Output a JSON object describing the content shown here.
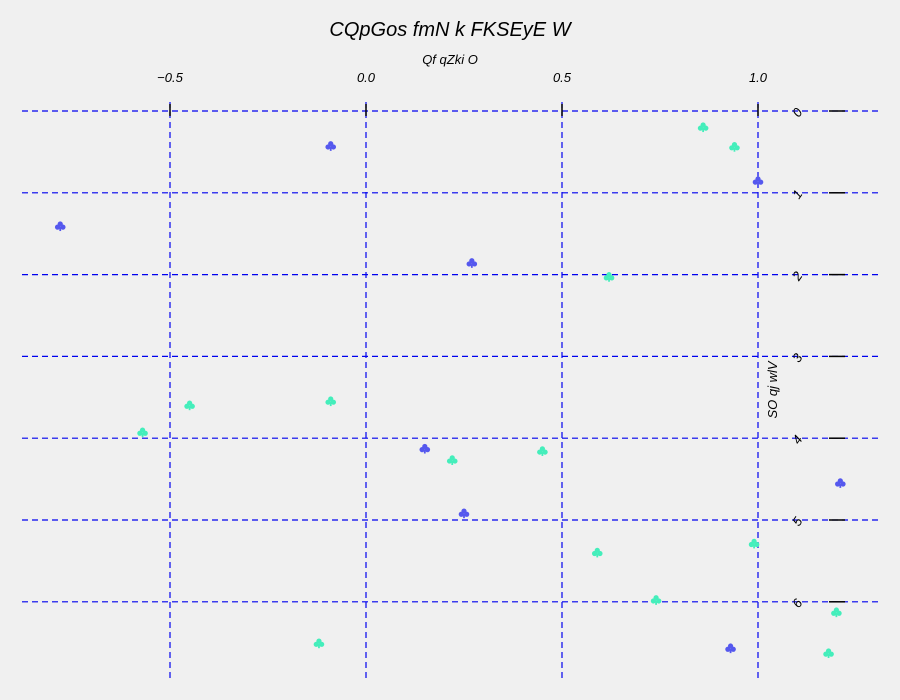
{
  "chart_data": {
    "type": "scatter",
    "title": "CQpGos fmN k FKSEyE   W",
    "xlabel": "Qf qZki O",
    "ylabel": "SO qj wlV",
    "xlim": [
      -0.88,
      1.3
    ],
    "ylim": [
      -0.2,
      6.95
    ],
    "x_ticks": [
      -0.5,
      0.0,
      0.5,
      1.0
    ],
    "x_tick_labels": [
      "−0.5",
      "0.0",
      "0.5",
      "1.0"
    ],
    "y_ticks": [
      0,
      1,
      2,
      3,
      4,
      5,
      6
    ],
    "y_tick_labels": [
      "0",
      "1",
      "2",
      "3",
      "4",
      "5",
      "6"
    ],
    "x_axis_position": "top",
    "y_axis_position": "right",
    "grid": true,
    "grid_color": "#0000ee",
    "marker": "club",
    "series": [
      {
        "color": "#5558ee",
        "points": [
          {
            "x": -0.09,
            "y": 0.43
          },
          {
            "x": 1.0,
            "y": 0.86
          },
          {
            "x": -0.78,
            "y": 1.41
          },
          {
            "x": 0.27,
            "y": 1.86
          },
          {
            "x": 0.15,
            "y": 4.13
          },
          {
            "x": 1.21,
            "y": 4.55
          },
          {
            "x": 0.25,
            "y": 4.92
          },
          {
            "x": 0.93,
            "y": 6.57
          }
        ]
      },
      {
        "color": "#44eebb",
        "points": [
          {
            "x": 0.86,
            "y": 0.2
          },
          {
            "x": 0.94,
            "y": 0.44
          },
          {
            "x": 0.62,
            "y": 2.03
          },
          {
            "x": -0.45,
            "y": 3.6
          },
          {
            "x": -0.09,
            "y": 3.55
          },
          {
            "x": -0.57,
            "y": 3.93
          },
          {
            "x": 0.22,
            "y": 4.27
          },
          {
            "x": 0.45,
            "y": 4.16
          },
          {
            "x": 0.99,
            "y": 5.29
          },
          {
            "x": 0.59,
            "y": 5.4
          },
          {
            "x": 0.74,
            "y": 5.98
          },
          {
            "x": 1.2,
            "y": 6.13
          },
          {
            "x": -0.12,
            "y": 6.51
          },
          {
            "x": 1.18,
            "y": 6.63
          }
        ]
      }
    ]
  }
}
